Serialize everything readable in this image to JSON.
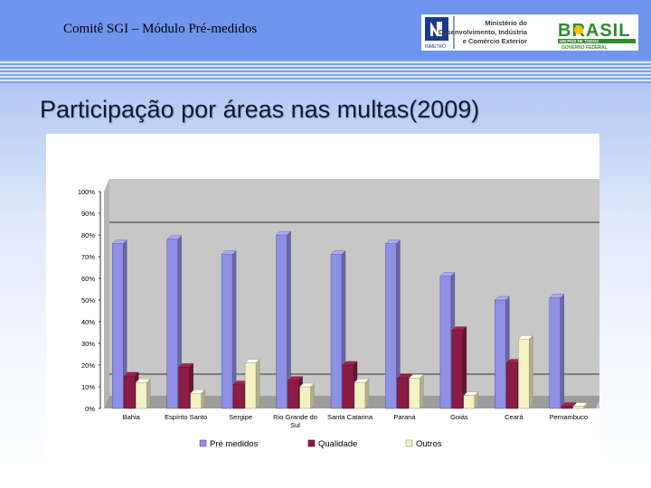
{
  "header": {
    "title": "Comitê SGI – Módulo Pré-medidos",
    "logo_inmetro": "INMETRO",
    "logo_ministry": [
      "Ministério do",
      "Desenvolvimento, Indústria",
      "e Comércio Exterior"
    ],
    "logo_brasil": "BRASIL",
    "logo_brasil_sub1": "UM PAÍS DE TODOS",
    "logo_brasil_sub2": "GOVERNO FEDERAL"
  },
  "slide": {
    "title": "Participação por áreas nas multas(2009)"
  },
  "colors": {
    "pre": "#8f8fe6",
    "qual": "#8b1c45",
    "outros": "#f4f2c4"
  },
  "chart_data": {
    "type": "bar",
    "title": "",
    "xlabel": "",
    "ylabel": "",
    "ylim": [
      0,
      100
    ],
    "y_ticks": [
      "0%",
      "10%",
      "20%",
      "30%",
      "40%",
      "50%",
      "60%",
      "70%",
      "80%",
      "90%",
      "100%"
    ],
    "categories": [
      [
        "Bahia"
      ],
      [
        "Espírito Santo"
      ],
      [
        "Sergipe"
      ],
      [
        "Rio Grande do",
        "Sul"
      ],
      [
        "Santa Catarina"
      ],
      [
        "Paraná"
      ],
      [
        "Goiás"
      ],
      [
        "Ceará"
      ],
      [
        "Pernambuco"
      ]
    ],
    "series": [
      {
        "name": "Pré medidos",
        "values": [
          76,
          78,
          71,
          80,
          71,
          76,
          61,
          50,
          51
        ]
      },
      {
        "name": "Qualidade",
        "values": [
          15,
          19,
          11,
          13,
          20,
          14,
          36,
          21,
          1
        ]
      },
      {
        "name": "Outros",
        "values": [
          12,
          7,
          21,
          10,
          12,
          14,
          6,
          32,
          1
        ]
      }
    ],
    "grid": false,
    "legend_position": "bottom"
  }
}
